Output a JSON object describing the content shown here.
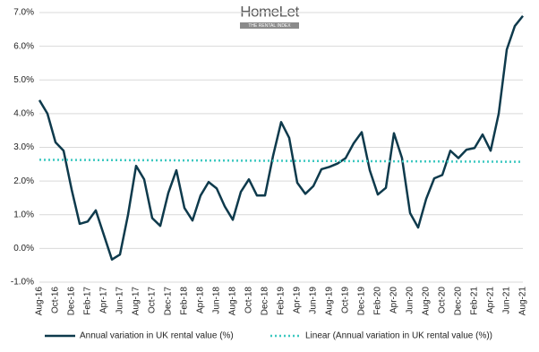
{
  "logo": {
    "name": "HomeLet",
    "tagline": "THE RENTAL INDEX"
  },
  "chart_data": {
    "type": "line",
    "categories": [
      "Aug-16",
      null,
      "Oct-16",
      null,
      "Dec-16",
      null,
      "Feb-17",
      null,
      "Apr-17",
      null,
      "Jun-17",
      null,
      "Aug-17",
      null,
      "Oct-17",
      null,
      "Dec-17",
      null,
      "Feb-18",
      null,
      "Apr-18",
      null,
      "Jun-18",
      null,
      "Aug-18",
      null,
      "Oct-18",
      null,
      "Dec-18",
      null,
      "Feb-19",
      null,
      "Apr-19",
      null,
      "Jun-19",
      null,
      "Aug-19",
      null,
      "Oct-19",
      null,
      "Dec-19",
      null,
      "Feb-20",
      null,
      "Apr-20",
      null,
      "Jun-20",
      null,
      "Aug-20",
      null,
      "Oct-20",
      null,
      "Dec-20",
      null,
      "Feb-21",
      null,
      "Apr-21",
      null,
      "Jun-21",
      null,
      "Aug-21"
    ],
    "series": [
      {
        "name": "Annual variation in UK rental value (%)",
        "color": "#0e3a4c",
        "values": [
          4.4,
          4.0,
          3.15,
          2.9,
          1.75,
          0.73,
          0.8,
          1.13,
          0.4,
          -0.33,
          -0.18,
          1.0,
          2.45,
          2.05,
          0.9,
          0.67,
          1.65,
          2.32,
          1.2,
          0.83,
          1.57,
          1.97,
          1.78,
          1.25,
          0.85,
          1.68,
          2.05,
          1.57,
          1.57,
          2.75,
          3.75,
          3.28,
          1.95,
          1.62,
          1.85,
          2.35,
          2.42,
          2.52,
          2.68,
          3.12,
          3.45,
          2.32,
          1.6,
          1.8,
          3.42,
          2.68,
          1.05,
          0.62,
          1.47,
          2.08,
          2.18,
          2.9,
          2.68,
          2.93,
          2.98,
          3.38,
          2.9,
          4.0,
          5.9,
          6.6,
          6.9
        ]
      }
    ],
    "trendline": {
      "name": "Linear (Annual variation in UK rental value (%))",
      "color": "#3cc8c0",
      "values": [
        2.63,
        2.57
      ]
    },
    "ylim": [
      -1,
      7
    ],
    "yticks": [
      {
        "value": -1,
        "label": "-1.0%"
      },
      {
        "value": 0,
        "label": "0.0%"
      },
      {
        "value": 1,
        "label": "1.0%"
      },
      {
        "value": 2,
        "label": "2.0%"
      },
      {
        "value": 3,
        "label": "3.0%"
      },
      {
        "value": 4,
        "label": "4.0%"
      },
      {
        "value": 5,
        "label": "5.0%"
      },
      {
        "value": 6,
        "label": "6.0%"
      },
      {
        "value": 7,
        "label": "7.0%"
      }
    ],
    "grid": true
  }
}
